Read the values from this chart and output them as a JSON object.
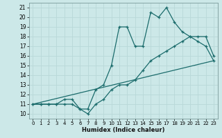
{
  "xlabel": "Humidex (Indice chaleur)",
  "bg_color": "#cce8e8",
  "grid_color": "#b8d8d8",
  "line_color": "#1a6b6b",
  "xlim": [
    -0.5,
    23.5
  ],
  "ylim": [
    9.5,
    21.5
  ],
  "xticks": [
    0,
    1,
    2,
    3,
    4,
    5,
    6,
    7,
    8,
    9,
    10,
    11,
    12,
    13,
    14,
    15,
    16,
    17,
    18,
    19,
    20,
    21,
    22,
    23
  ],
  "yticks": [
    10,
    11,
    12,
    13,
    14,
    15,
    16,
    17,
    18,
    19,
    20,
    21
  ],
  "line1_x": [
    0,
    1,
    2,
    3,
    4,
    5,
    6,
    7,
    8,
    9,
    10,
    11,
    12,
    13,
    14,
    15,
    16,
    17,
    18,
    19,
    20,
    21,
    22,
    23
  ],
  "line1_y": [
    11,
    11,
    11,
    11,
    11,
    11,
    10.5,
    10,
    11,
    11.5,
    12.5,
    13,
    13,
    13.5,
    14.5,
    15.5,
    16,
    16.5,
    17,
    17.5,
    18,
    18,
    18,
    16
  ],
  "line2_x": [
    0,
    1,
    2,
    3,
    4,
    5,
    6,
    7,
    8,
    9,
    10,
    11,
    12,
    13,
    14,
    15,
    16,
    17,
    18,
    19,
    20,
    21,
    22,
    23
  ],
  "line2_y": [
    11,
    11,
    11,
    11,
    11.5,
    11.5,
    10.5,
    10.5,
    12.5,
    13,
    15,
    19,
    19,
    17,
    17,
    20.5,
    20,
    21,
    19.5,
    18.5,
    18,
    17.5,
    17,
    15.5
  ],
  "line3_x": [
    0,
    23
  ],
  "line3_y": [
    11,
    15.5
  ]
}
